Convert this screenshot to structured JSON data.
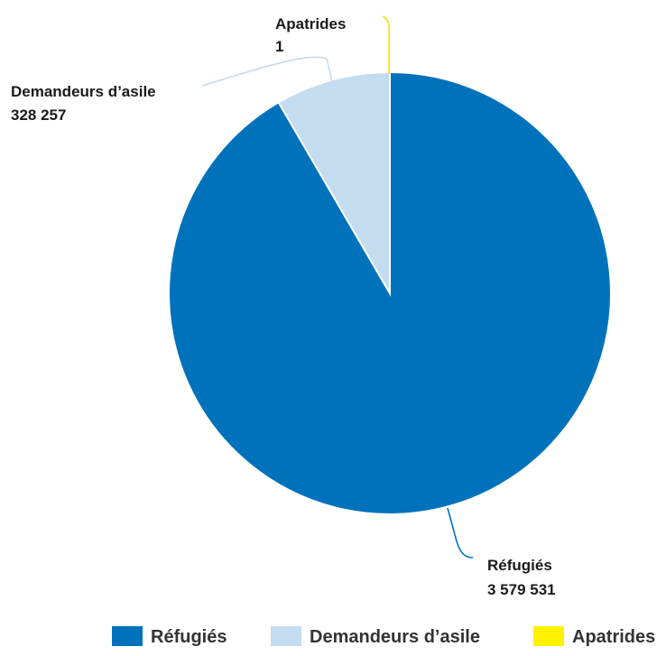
{
  "chart_data": {
    "type": "pie",
    "title": "",
    "slices": [
      {
        "name": "Réfugiés",
        "value": 3579531,
        "label_value": "3 579 531",
        "color": "#0072bc"
      },
      {
        "name": "Demandeurs d’asile",
        "value": 328257,
        "label_value": "328 257",
        "color": "#c3dcef"
      },
      {
        "name": "Apatrides",
        "value": 1,
        "label_value": "1",
        "color": "#fff200"
      }
    ],
    "start_angle": "12 o'clock",
    "direction": "clockwise",
    "legend": {
      "position": "bottom-right",
      "entries": [
        "Réfugiés",
        "Demandeurs d’asile",
        "Apatrides"
      ]
    }
  }
}
